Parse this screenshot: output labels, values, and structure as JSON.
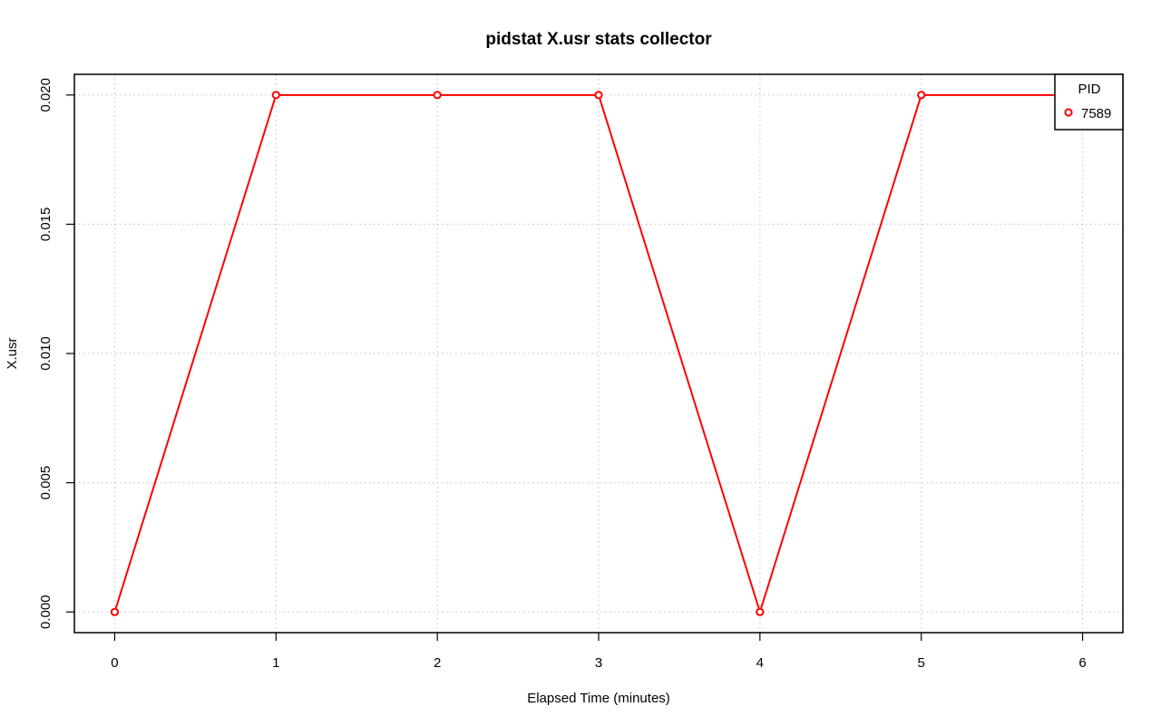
{
  "chart_data": {
    "type": "line",
    "title": "pidstat X.usr stats collector",
    "xlabel": "Elapsed Time (minutes)",
    "ylabel": "X.usr",
    "xlim": [
      -0.25,
      6.25
    ],
    "ylim": [
      -0.0008,
      0.0208
    ],
    "x_ticks": [
      0,
      1,
      2,
      3,
      4,
      5,
      6
    ],
    "x_tick_labels": [
      "0",
      "1",
      "2",
      "3",
      "4",
      "5",
      "6"
    ],
    "y_ticks": [
      0,
      0.005,
      0.01,
      0.015,
      0.02
    ],
    "y_tick_labels": [
      "0.000",
      "0.005",
      "0.010",
      "0.015",
      "0.020"
    ],
    "grid": true,
    "legend": {
      "title": "PID",
      "position": "top-right"
    },
    "series": [
      {
        "name": "7589",
        "color": "#ff0000",
        "x": [
          0,
          1,
          2,
          3,
          4,
          5,
          6
        ],
        "y": [
          0,
          0.02,
          0.02,
          0.02,
          0,
          0.02,
          0.02
        ]
      }
    ]
  }
}
